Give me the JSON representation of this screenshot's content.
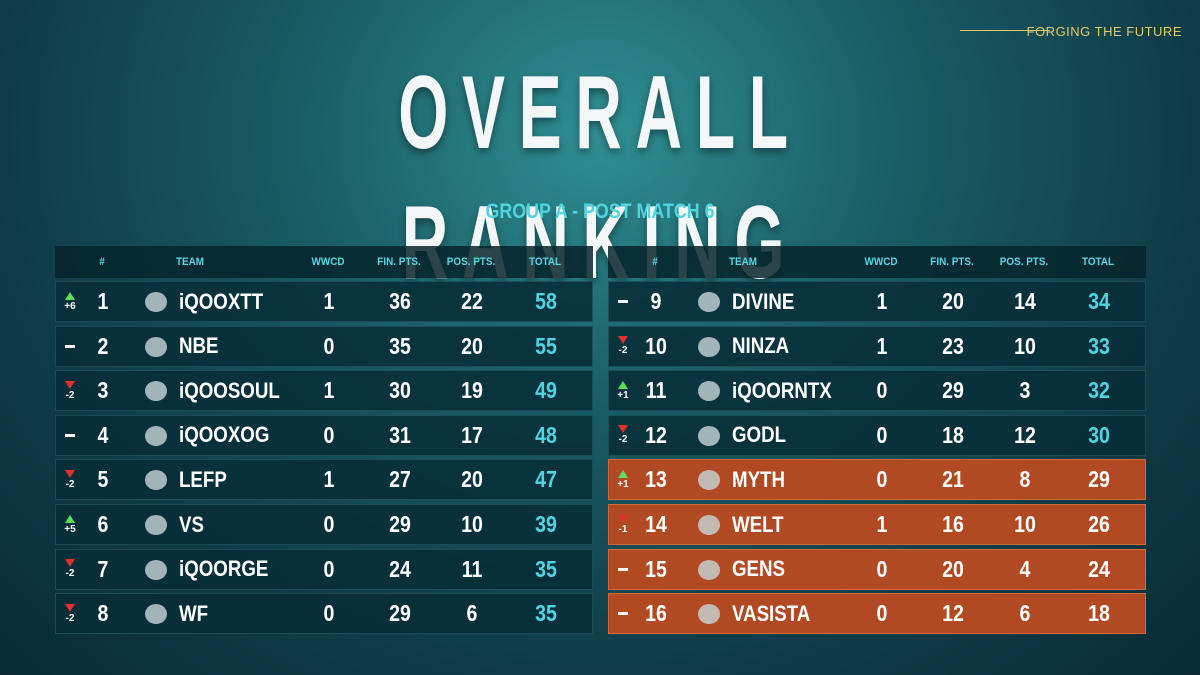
{
  "header": {
    "tagline": "FORGING THE FUTURE",
    "title": "OVERALL RANKING",
    "subtitle": "GROUP A - POST MATCH 6"
  },
  "tables": [
    {
      "columns": [
        "#",
        "TEAM",
        "WWCD",
        "FIN. PTS.",
        "POS. PTS.",
        "TOTAL"
      ],
      "rows": [
        {
          "change": "+6",
          "rank": 1,
          "team": "iQOOXTT",
          "wwcd": 1,
          "fin": 36,
          "pos": 22,
          "total": 58
        },
        {
          "change": null,
          "rank": 2,
          "team": "NBE",
          "wwcd": 0,
          "fin": 35,
          "pos": 20,
          "total": 55
        },
        {
          "change": "-2",
          "rank": 3,
          "team": "iQOOSOUL",
          "wwcd": 1,
          "fin": 30,
          "pos": 19,
          "total": 49
        },
        {
          "change": null,
          "rank": 4,
          "team": "iQOOXOG",
          "wwcd": 0,
          "fin": 31,
          "pos": 17,
          "total": 48
        },
        {
          "change": "-2",
          "rank": 5,
          "team": "LEFP",
          "wwcd": 1,
          "fin": 27,
          "pos": 20,
          "total": 47
        },
        {
          "change": "+5",
          "rank": 6,
          "team": "VS",
          "wwcd": 0,
          "fin": 29,
          "pos": 10,
          "total": 39
        },
        {
          "change": "-2",
          "rank": 7,
          "team": "iQOORGE",
          "wwcd": 0,
          "fin": 24,
          "pos": 11,
          "total": 35
        },
        {
          "change": "-2",
          "rank": 8,
          "team": "WF",
          "wwcd": 0,
          "fin": 29,
          "pos": 6,
          "total": 35
        }
      ]
    },
    {
      "columns": [
        "#",
        "TEAM",
        "WWCD",
        "FIN. PTS.",
        "POS. PTS.",
        "TOTAL"
      ],
      "rows": [
        {
          "change": null,
          "rank": 9,
          "team": "DIVINE",
          "wwcd": 1,
          "fin": 20,
          "pos": 14,
          "total": 34
        },
        {
          "change": "-2",
          "rank": 10,
          "team": "NINZA",
          "wwcd": 1,
          "fin": 23,
          "pos": 10,
          "total": 33
        },
        {
          "change": "+1",
          "rank": 11,
          "team": "iQOORNTX",
          "wwcd": 0,
          "fin": 29,
          "pos": 3,
          "total": 32
        },
        {
          "change": "-2",
          "rank": 12,
          "team": "GODL",
          "wwcd": 0,
          "fin": 18,
          "pos": 12,
          "total": 30
        },
        {
          "change": "+1",
          "rank": 13,
          "team": "MYTH",
          "wwcd": 0,
          "fin": 21,
          "pos": 8,
          "total": 29,
          "highlight": true
        },
        {
          "change": "-1",
          "rank": 14,
          "team": "WELT",
          "wwcd": 1,
          "fin": 16,
          "pos": 10,
          "total": 26,
          "highlight": true
        },
        {
          "change": null,
          "rank": 15,
          "team": "GENS",
          "wwcd": 0,
          "fin": 20,
          "pos": 4,
          "total": 24,
          "highlight": true
        },
        {
          "change": null,
          "rank": 16,
          "team": "VASISTA",
          "wwcd": 0,
          "fin": 12,
          "pos": 6,
          "total": 18,
          "highlight": true
        }
      ]
    }
  ]
}
